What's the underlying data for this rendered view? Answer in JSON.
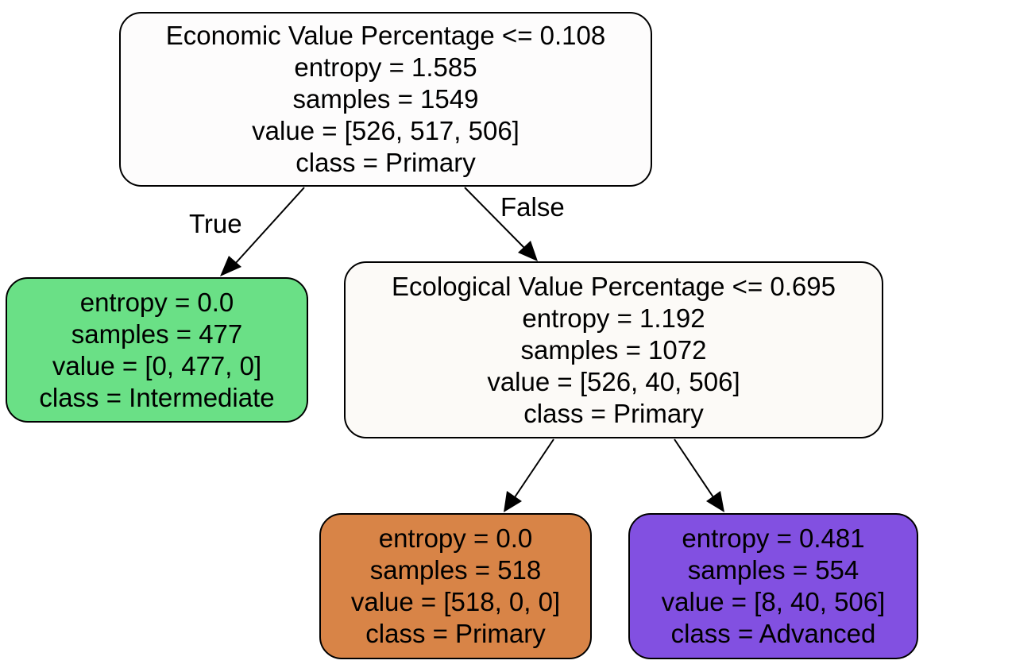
{
  "nodes": {
    "root": {
      "lines": [
        "Economic Value Percentage <= 0.108",
        "entropy = 1.585",
        "samples = 1549",
        "value = [526, 517, 506]",
        "class = Primary"
      ],
      "color": "#fdfcfc"
    },
    "left_leaf": {
      "lines": [
        "entropy = 0.0",
        "samples = 477",
        "value = [0, 477, 0]",
        "class = Intermediate"
      ],
      "color": "#6ae086"
    },
    "right_split": {
      "lines": [
        "Ecological Value Percentage <= 0.695",
        "entropy = 1.192",
        "samples = 1072",
        "value = [526, 40, 506]",
        "class = Primary"
      ],
      "color": "#fcfaf7"
    },
    "primary_leaf": {
      "lines": [
        "entropy = 0.0",
        "samples = 518",
        "value = [518, 0, 0]",
        "class = Primary"
      ],
      "color": "#d88447"
    },
    "advanced_leaf": {
      "lines": [
        "entropy = 0.481",
        "samples = 554",
        "value = [8, 40, 506]",
        "class = Advanced"
      ],
      "color": "#8250e1"
    }
  },
  "edge_labels": {
    "true": "True",
    "false": "False"
  }
}
